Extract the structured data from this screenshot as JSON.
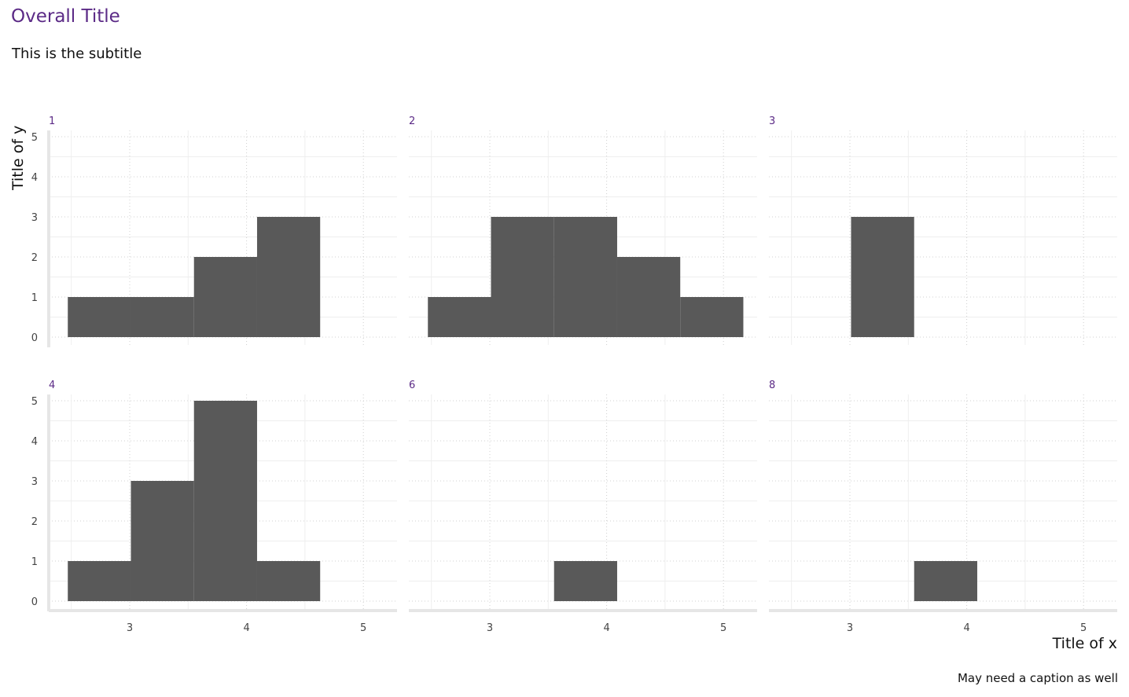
{
  "title": "Overall Title",
  "subtitle": "This is the subtitle",
  "caption": "May need a caption as well",
  "chart_data": {
    "type": "bar",
    "kind": "faceted-histogram",
    "xlabel": "Title of x",
    "ylabel": "Title of y",
    "xlim": [
      2.35,
      5.35
    ],
    "ylim": [
      0,
      5
    ],
    "x_ticks": [
      3,
      4,
      5
    ],
    "y_ticks": [
      0,
      1,
      2,
      3,
      4,
      5
    ],
    "bin_width": 0.54,
    "bar_color": "#595959",
    "strip_color": "#5b2a86",
    "grid": "dotted",
    "facets": [
      {
        "label": "1",
        "bins": [
          {
            "x0": 2.47,
            "x1": 3.01,
            "count": 1
          },
          {
            "x0": 3.01,
            "x1": 3.55,
            "count": 1
          },
          {
            "x0": 3.55,
            "x1": 4.09,
            "count": 2
          },
          {
            "x0": 4.09,
            "x1": 4.63,
            "count": 3
          }
        ]
      },
      {
        "label": "2",
        "bins": [
          {
            "x0": 2.47,
            "x1": 3.01,
            "count": 1
          },
          {
            "x0": 3.01,
            "x1": 3.55,
            "count": 3
          },
          {
            "x0": 3.55,
            "x1": 4.09,
            "count": 3
          },
          {
            "x0": 4.09,
            "x1": 4.63,
            "count": 2
          },
          {
            "x0": 4.63,
            "x1": 5.17,
            "count": 1
          }
        ]
      },
      {
        "label": "3",
        "bins": [
          {
            "x0": 3.01,
            "x1": 3.55,
            "count": 3
          }
        ]
      },
      {
        "label": "4",
        "bins": [
          {
            "x0": 2.47,
            "x1": 3.01,
            "count": 1
          },
          {
            "x0": 3.01,
            "x1": 3.55,
            "count": 3
          },
          {
            "x0": 3.55,
            "x1": 4.09,
            "count": 5
          },
          {
            "x0": 4.09,
            "x1": 4.63,
            "count": 1
          }
        ]
      },
      {
        "label": "6",
        "bins": [
          {
            "x0": 3.55,
            "x1": 4.09,
            "count": 1
          }
        ]
      },
      {
        "label": "8",
        "bins": [
          {
            "x0": 3.55,
            "x1": 4.09,
            "count": 1
          }
        ]
      }
    ]
  }
}
